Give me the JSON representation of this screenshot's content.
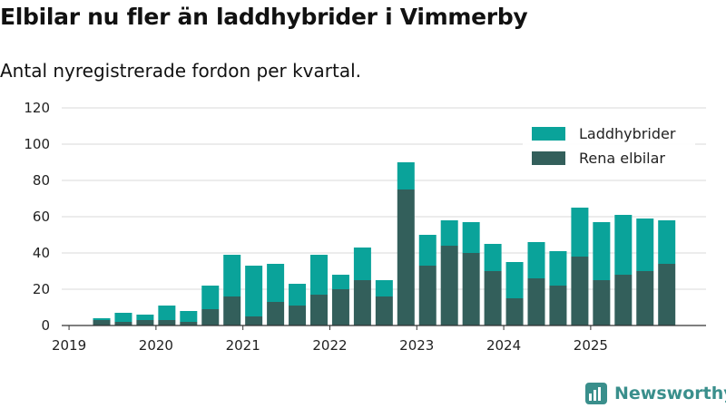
{
  "header": {
    "title": "Elbilar nu fler än laddhybrider i Vimmerby",
    "subtitle": "Antal nyregistrerade fordon per kvartal."
  },
  "branding": {
    "logo_text": "Newsworthy",
    "logo_color": "#3a8f8c"
  },
  "chart_data": {
    "type": "bar",
    "stacked": true,
    "title": "",
    "xlabel": "",
    "ylabel": "",
    "ylim": [
      0,
      120
    ],
    "yticks": [
      0,
      20,
      40,
      60,
      80,
      100,
      120
    ],
    "xticks": [
      "2019",
      "2020",
      "2021",
      "2022",
      "2023",
      "2024",
      "2025"
    ],
    "grid": "horizontal",
    "legend_position": "top-right",
    "categories": [
      "2019 Q2",
      "2019 Q3",
      "2019 Q4",
      "2020 Q1",
      "2020 Q2",
      "2020 Q3",
      "2020 Q4",
      "2021 Q1",
      "2021 Q2",
      "2021 Q3",
      "2021 Q4",
      "2022 Q1",
      "2022 Q2",
      "2022 Q3",
      "2022 Q4",
      "2023 Q1",
      "2023 Q2",
      "2023 Q3",
      "2023 Q4",
      "2024 Q1",
      "2024 Q2",
      "2024 Q3",
      "2024 Q4",
      "2025 Q1",
      "2025 Q2",
      "2025 Q3",
      "2025 Q4"
    ],
    "series": [
      {
        "name": "Rena elbilar",
        "color": "#335f5b",
        "values": [
          3,
          2,
          3,
          3,
          2,
          9,
          16,
          5,
          13,
          11,
          17,
          20,
          25,
          16,
          75,
          33,
          44,
          40,
          30,
          15,
          26,
          22,
          38,
          25,
          28,
          30,
          34
        ]
      },
      {
        "name": "Laddhybrider",
        "color": "#0aa39a",
        "values": [
          1,
          5,
          3,
          8,
          6,
          13,
          23,
          28,
          21,
          12,
          22,
          8,
          18,
          9,
          15,
          17,
          14,
          17,
          15,
          20,
          20,
          19,
          27,
          32,
          33,
          29,
          24
        ]
      }
    ]
  }
}
